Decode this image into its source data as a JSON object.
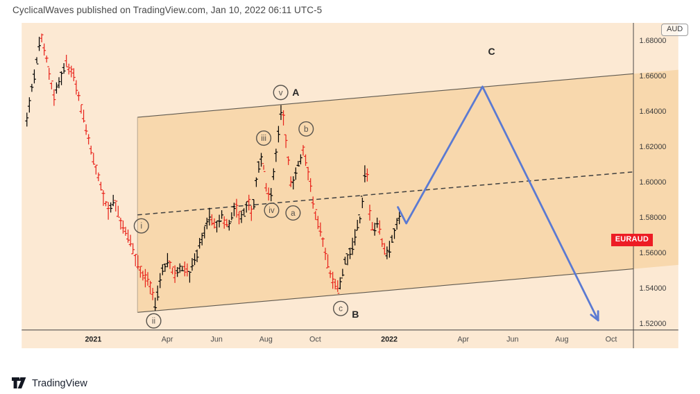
{
  "header": {
    "attribution": "CyclicalWaves published on TradingView.com, Jan 10, 2022 06:11 UTC-5"
  },
  "footer": {
    "brand": "TradingView"
  },
  "price_axis": {
    "currency_badge": "AUD",
    "symbol_label": "EURAUD",
    "ticks": [
      {
        "label": "1.68000",
        "value": 1.68
      },
      {
        "label": "1.66000",
        "value": 1.66
      },
      {
        "label": "1.64000",
        "value": 1.64
      },
      {
        "label": "1.62000",
        "value": 1.62
      },
      {
        "label": "1.60000",
        "value": 1.6
      },
      {
        "label": "1.58000",
        "value": 1.58
      },
      {
        "label": "1.56000",
        "value": 1.56
      },
      {
        "label": "1.54000",
        "value": 1.54
      },
      {
        "label": "1.52000",
        "value": 1.52
      }
    ]
  },
  "time_axis": {
    "labels": [
      {
        "text": "2021",
        "m": 0,
        "year": true
      },
      {
        "text": "Apr",
        "m": 3,
        "year": false
      },
      {
        "text": "Jun",
        "m": 5,
        "year": false
      },
      {
        "text": "Aug",
        "m": 7,
        "year": false
      },
      {
        "text": "Oct",
        "m": 9,
        "year": false
      },
      {
        "text": "2022",
        "m": 12,
        "year": true
      },
      {
        "text": "Apr",
        "m": 15,
        "year": false
      },
      {
        "text": "Jun",
        "m": 17,
        "year": false
      },
      {
        "text": "Aug",
        "m": 19,
        "year": false
      },
      {
        "text": "Oct",
        "m": 21,
        "year": false
      }
    ]
  },
  "colors": {
    "chart_bg": "#fce9d3",
    "channel_fill": "#f8d8ad",
    "channel_line": "#5f594f",
    "channel_left_edge": "#b3a48d",
    "midline": "#3f3f3f",
    "bar_up": "#000000",
    "bar_down": "#e8221a",
    "arrow": "#5b7ad2",
    "axis_line": "#3f3f3f",
    "axis_text": "#3a3a3a",
    "wave_label": "#57534d",
    "abc_label": "#262626",
    "symbol_label_bg": "#ed1c24"
  },
  "chart_data": {
    "type": "bar",
    "symbol": "EURAUD",
    "quote_currency": "AUD",
    "x_unit": "months since Jan 2021",
    "x_domain": [
      -2.8,
      23.7
    ],
    "y_domain": [
      1.516,
      1.69
    ],
    "price_ticks": [
      1.52,
      1.54,
      1.56,
      1.58,
      1.6,
      1.62,
      1.64,
      1.66,
      1.68
    ],
    "grid": false,
    "swing_points": [
      [
        -2.69,
        1.636
      ],
      [
        -2.11,
        1.6844
      ],
      [
        -1.58,
        1.648
      ],
      [
        -1.11,
        1.667
      ],
      [
        -0.79,
        1.66
      ],
      [
        -0.4,
        1.636
      ],
      [
        -0.05,
        1.616
      ],
      [
        0.32,
        1.596
      ],
      [
        0.61,
        1.583
      ],
      [
        0.87,
        1.59
      ],
      [
        1.11,
        1.577
      ],
      [
        1.4,
        1.57
      ],
      [
        1.64,
        1.56
      ],
      [
        1.98,
        1.548
      ],
      [
        2.24,
        1.544
      ],
      [
        2.51,
        1.5299
      ],
      [
        2.77,
        1.5476
      ],
      [
        3.03,
        1.5568
      ],
      [
        3.3,
        1.5476
      ],
      [
        3.64,
        1.552
      ],
      [
        3.9,
        1.5476
      ],
      [
        4.17,
        1.5579
      ],
      [
        4.43,
        1.5696
      ],
      [
        4.7,
        1.5807
      ],
      [
        4.96,
        1.5752
      ],
      [
        5.22,
        1.5807
      ],
      [
        5.49,
        1.5733
      ],
      [
        5.75,
        1.5862
      ],
      [
        6.02,
        1.5789
      ],
      [
        6.28,
        1.5899
      ],
      [
        6.46,
        1.5807
      ],
      [
        6.65,
        1.6064
      ],
      [
        6.86,
        1.6138
      ],
      [
        7.02,
        1.5954
      ],
      [
        7.18,
        1.5899
      ],
      [
        7.39,
        1.6138
      ],
      [
        7.65,
        1.6443
      ],
      [
        7.86,
        1.6175
      ],
      [
        8.05,
        1.5954
      ],
      [
        8.31,
        1.6101
      ],
      [
        8.52,
        1.6193
      ],
      [
        8.76,
        1.6028
      ],
      [
        9.02,
        1.5807
      ],
      [
        9.23,
        1.5715
      ],
      [
        9.45,
        1.5568
      ],
      [
        9.71,
        1.544
      ],
      [
        9.97,
        1.5384
      ],
      [
        10.21,
        1.5549
      ],
      [
        10.42,
        1.5604
      ],
      [
        10.63,
        1.5696
      ],
      [
        10.84,
        1.5807
      ],
      [
        11.03,
        1.6064
      ],
      [
        11.06,
        1.6167
      ],
      [
        11.19,
        1.5844
      ],
      [
        11.35,
        1.5715
      ],
      [
        11.56,
        1.577
      ],
      [
        11.77,
        1.5604
      ],
      [
        11.95,
        1.5586
      ],
      [
        12.14,
        1.5696
      ],
      [
        12.35,
        1.5788
      ],
      [
        12.48,
        1.5807
      ]
    ],
    "wave_labels": [
      {
        "text": "i",
        "circled": true,
        "m": 1.95,
        "p": 1.5752
      },
      {
        "text": "ii",
        "circled": true,
        "m": 2.45,
        "p": 1.5215
      },
      {
        "text": "iii",
        "circled": true,
        "m": 6.91,
        "p": 1.6248
      },
      {
        "text": "iv",
        "circled": true,
        "m": 7.23,
        "p": 1.584
      },
      {
        "text": "v",
        "circled": true,
        "m": 7.6,
        "p": 1.6506
      },
      {
        "text": "a",
        "circled": true,
        "m": 8.1,
        "p": 1.5825
      },
      {
        "text": "b",
        "circled": true,
        "m": 8.63,
        "p": 1.63
      },
      {
        "text": "c",
        "circled": true,
        "m": 10.03,
        "p": 1.5285
      },
      {
        "text": "A",
        "circled": false,
        "m": 8.21,
        "p": 1.6506
      },
      {
        "text": "B",
        "circled": false,
        "m": 10.63,
        "p": 1.5252
      },
      {
        "text": "C",
        "circled": false,
        "m": 16.15,
        "p": 1.6738
      }
    ],
    "channel": {
      "m_left": 1.794,
      "m_right": 21.9,
      "upper_p": [
        1.6366,
        1.6612
      ],
      "lower_p": [
        1.5263,
        1.5509
      ],
      "mid_dashed_p": [
        1.5814,
        1.6057
      ]
    },
    "projection_arrow": [
      [
        12.35,
        1.5858
      ],
      [
        12.69,
        1.5766
      ],
      [
        15.78,
        1.6539
      ],
      [
        20.47,
        1.5218
      ]
    ],
    "last_price": 1.5748
  }
}
